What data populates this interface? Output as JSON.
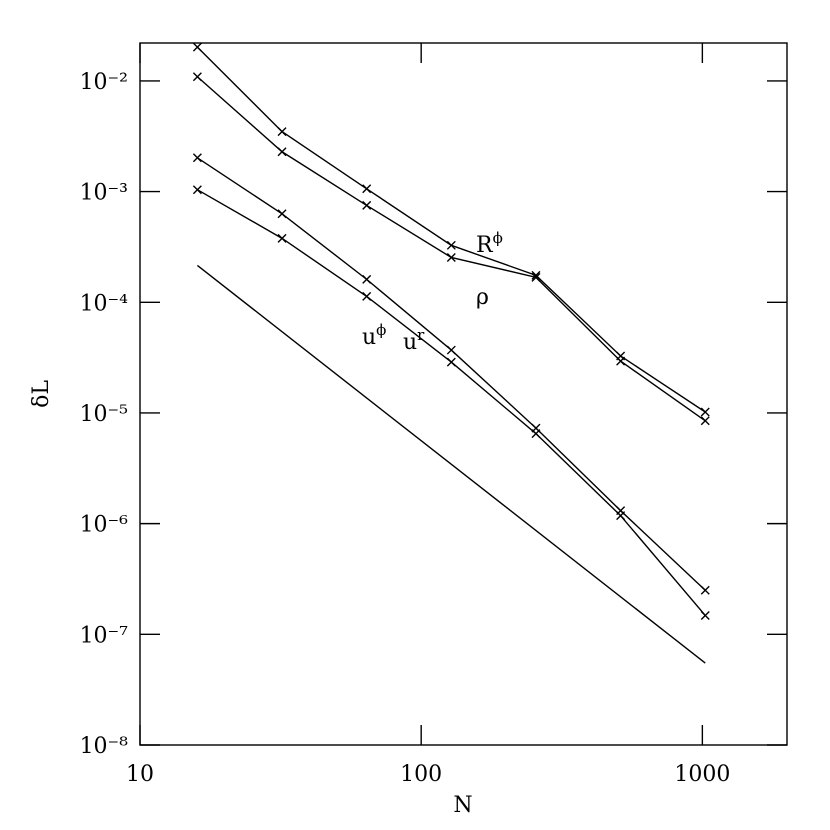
{
  "chart_data": {
    "type": "line",
    "x_label": "N",
    "y_label": "δL",
    "log_x": true,
    "log_y": true,
    "xlim": [
      10,
      2000
    ],
    "ylim": [
      1e-08,
      0.022
    ],
    "xticks": [
      10,
      100,
      1000
    ],
    "yticks": [
      {
        "value": 1e-08,
        "label": "10⁻⁸"
      },
      {
        "value": 1e-07,
        "label": "10⁻⁷"
      },
      {
        "value": 1e-06,
        "label": "10⁻⁶"
      },
      {
        "value": 1e-05,
        "label": "10⁻⁵"
      },
      {
        "value": 0.0001,
        "label": "10⁻⁴"
      },
      {
        "value": 0.001,
        "label": "10⁻³"
      },
      {
        "value": 0.01,
        "label": "10⁻²"
      }
    ],
    "series": [
      {
        "color": "#000000",
        "marker": "x",
        "x": [
          16,
          32,
          64,
          128,
          256,
          512,
          1024
        ],
        "values": [
          0.0202,
          0.00348,
          0.00106,
          0.000327,
          0.000175,
          3.27e-05,
          1.02e-05
        ]
      },
      {
        "color": "#000000",
        "marker": "x",
        "x": [
          16,
          32,
          64,
          128,
          256,
          512,
          1024
        ],
        "values": [
          0.0109,
          0.00229,
          0.00075,
          0.000254,
          0.000168,
          2.94e-05,
          8.5e-06
        ]
      },
      {
        "color": "#000000",
        "marker": "x",
        "x": [
          16,
          32,
          64,
          128,
          256,
          512,
          1024
        ],
        "values": [
          0.00202,
          0.00063,
          0.000161,
          3.7e-05,
          7.3e-06,
          1.31e-06,
          2.5e-07
        ]
      },
      {
        "color": "#000000",
        "marker": "x",
        "x": [
          16,
          32,
          64,
          128,
          256,
          512,
          1024
        ],
        "values": [
          0.00104,
          0.000378,
          0.000113,
          2.88e-05,
          6.5e-06,
          1.18e-06,
          1.48e-07
        ]
      },
      {
        "color": "#000000",
        "marker": "none",
        "x": [
          16,
          1024
        ],
        "values": [
          0.000215,
          5.5e-08
        ]
      }
    ],
    "annotations": [
      {
        "text": "R",
        "sup": "ϕ"
      },
      {
        "text": "ρ"
      },
      {
        "text": "u",
        "sup": "r"
      },
      {
        "text": "u",
        "sup": "ϕ"
      }
    ]
  }
}
